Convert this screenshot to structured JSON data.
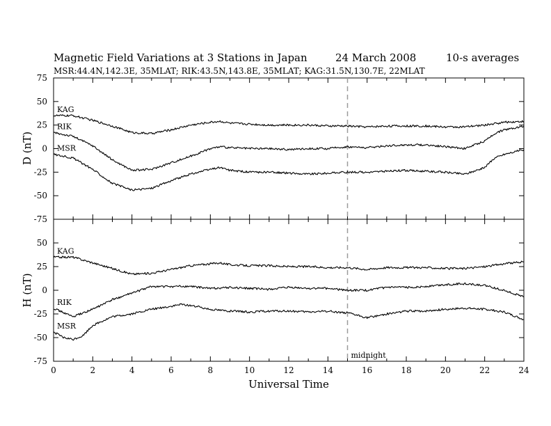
{
  "header": {
    "title": "Magnetic Field Variations at 3 Stations in Japan",
    "date": "24  March   2008",
    "averaging": "10-s averages",
    "subtitle": "MSR:44.4N,142.3E, 35MLAT;   RIK:43.5N,143.8E, 35MLAT;   KAG:31.5N,130.7E, 22MLAT"
  },
  "chart_data": [
    {
      "type": "line",
      "panel": "top",
      "ylabel": "D (nT)",
      "xlim": [
        0,
        24
      ],
      "ylim": [
        -75,
        75
      ],
      "yticks": [
        75,
        50,
        25,
        0,
        -25,
        -50,
        -75
      ],
      "grid": false,
      "series": [
        {
          "name": "KAG",
          "x": [
            0,
            1,
            2,
            3,
            4,
            5,
            6,
            7,
            8,
            8.5,
            9,
            10,
            11,
            12,
            13,
            14,
            15,
            16,
            17,
            18,
            19,
            20,
            21,
            22,
            23,
            24
          ],
          "values": [
            35,
            35,
            30,
            24,
            17,
            16,
            20,
            25,
            28,
            29,
            27,
            26,
            25,
            25,
            25,
            24,
            24,
            23,
            24,
            24,
            24,
            23,
            23,
            25,
            28,
            29
          ]
        },
        {
          "name": "RIK",
          "x": [
            0,
            1,
            2,
            3,
            4,
            5,
            6,
            7,
            8,
            8.5,
            9,
            10,
            11,
            12,
            13,
            14,
            15,
            16,
            17,
            18,
            19,
            20,
            21,
            22,
            22.5,
            23,
            24
          ],
          "values": [
            17,
            13,
            3,
            -12,
            -23,
            -22,
            -15,
            -8,
            0,
            2,
            1,
            0,
            0,
            -1,
            0,
            0,
            2,
            1,
            3,
            4,
            4,
            2,
            0,
            8,
            16,
            20,
            24
          ]
        },
        {
          "name": "MSR",
          "x": [
            0,
            1,
            2,
            3,
            4,
            5,
            6,
            7,
            8,
            8.5,
            9,
            10,
            11,
            12,
            13,
            14,
            15,
            16,
            17,
            18,
            19,
            20,
            21,
            22,
            22.5,
            23,
            24
          ],
          "values": [
            -6,
            -10,
            -22,
            -37,
            -44,
            -42,
            -34,
            -27,
            -22,
            -20,
            -23,
            -25,
            -25,
            -26,
            -27,
            -26,
            -25,
            -25,
            -24,
            -23,
            -24,
            -25,
            -27,
            -20,
            -10,
            -6,
            -1
          ]
        }
      ]
    },
    {
      "type": "line",
      "panel": "bottom",
      "xlabel": "Universal Time",
      "ylabel": "H (nT)",
      "xlim": [
        0,
        24
      ],
      "ylim": [
        -75,
        75
      ],
      "yticks": [
        50,
        25,
        0,
        -25,
        -50,
        -75
      ],
      "xticks": [
        0,
        2,
        4,
        6,
        8,
        10,
        12,
        14,
        16,
        18,
        20,
        22,
        24
      ],
      "grid": false,
      "series": [
        {
          "name": "KAG",
          "x": [
            0,
            1,
            2,
            3,
            4,
            5,
            6,
            7,
            8,
            8.5,
            9,
            10,
            11,
            12,
            13,
            14,
            15,
            16,
            17,
            18,
            19,
            20,
            21,
            22,
            23,
            24
          ],
          "values": [
            35,
            35,
            29,
            23,
            17,
            18,
            22,
            26,
            28,
            29,
            27,
            26,
            26,
            25,
            25,
            24,
            24,
            22,
            24,
            24,
            24,
            23,
            23,
            25,
            28,
            30
          ]
        },
        {
          "name": "RIK",
          "x": [
            0,
            1,
            2,
            3,
            4,
            5,
            6,
            7,
            8,
            9,
            10,
            11,
            12,
            13,
            14,
            15,
            16,
            17,
            18,
            19,
            20,
            21,
            22,
            23,
            24
          ],
          "values": [
            -19,
            -28,
            -20,
            -10,
            -3,
            4,
            4,
            4,
            2,
            3,
            2,
            1,
            3,
            2,
            2,
            0,
            0,
            3,
            3,
            4,
            6,
            7,
            5,
            0,
            -7
          ]
        },
        {
          "name": "MSR",
          "x": [
            0,
            0.5,
            1,
            1.5,
            2,
            3,
            4,
            5,
            6,
            6.5,
            7,
            8,
            9,
            10,
            11,
            12,
            13,
            14,
            15,
            16,
            17,
            18,
            19,
            20,
            21,
            22,
            23,
            24
          ],
          "values": [
            -44,
            -50,
            -52,
            -48,
            -37,
            -28,
            -25,
            -20,
            -17,
            -15,
            -16,
            -20,
            -22,
            -23,
            -22,
            -22,
            -23,
            -22,
            -24,
            -29,
            -25,
            -22,
            -22,
            -20,
            -19,
            -20,
            -23,
            -31
          ]
        }
      ]
    }
  ],
  "annotations": {
    "midnight_label": "midnight",
    "midnight_ut": 15
  },
  "colors": {
    "line": "#000000",
    "midnight_line": "#9a9a9a"
  }
}
